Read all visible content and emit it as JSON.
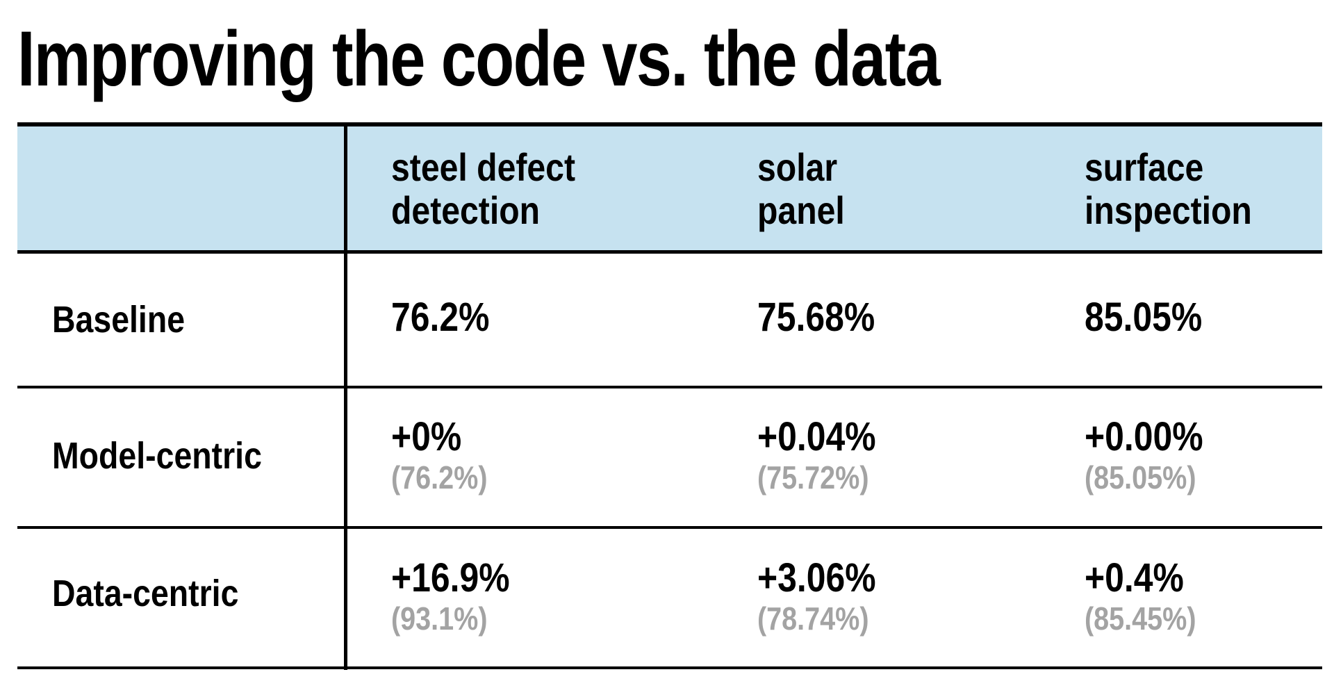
{
  "title": "Improving the code vs. the data",
  "colors": {
    "header_background": "#c6e2f0",
    "text": "#000000",
    "secondary_text": "#a3a3a3",
    "rules": "#000000"
  },
  "chart_data": {
    "type": "table",
    "title": "Improving the code vs. the data",
    "columns": [
      {
        "line1": "steel defect",
        "line2": "detection"
      },
      {
        "line1": "solar",
        "line2": "panel"
      },
      {
        "line1": "surface",
        "line2": "inspection"
      }
    ],
    "rows": [
      {
        "label": "Baseline",
        "cells": [
          {
            "main": "76.2%",
            "sub": ""
          },
          {
            "main": "75.68%",
            "sub": ""
          },
          {
            "main": "85.05%",
            "sub": ""
          }
        ]
      },
      {
        "label": "Model-centric",
        "cells": [
          {
            "main": "+0%",
            "sub": "(76.2%)"
          },
          {
            "main": "+0.04%",
            "sub": "(75.72%)"
          },
          {
            "main": "+0.00%",
            "sub": "(85.05%)"
          }
        ]
      },
      {
        "label": "Data-centric",
        "cells": [
          {
            "main": "+16.9%",
            "sub": "(93.1%)"
          },
          {
            "main": "+3.06%",
            "sub": "(78.74%)"
          },
          {
            "main": "+0.4%",
            "sub": "(85.45%)"
          }
        ]
      }
    ]
  }
}
